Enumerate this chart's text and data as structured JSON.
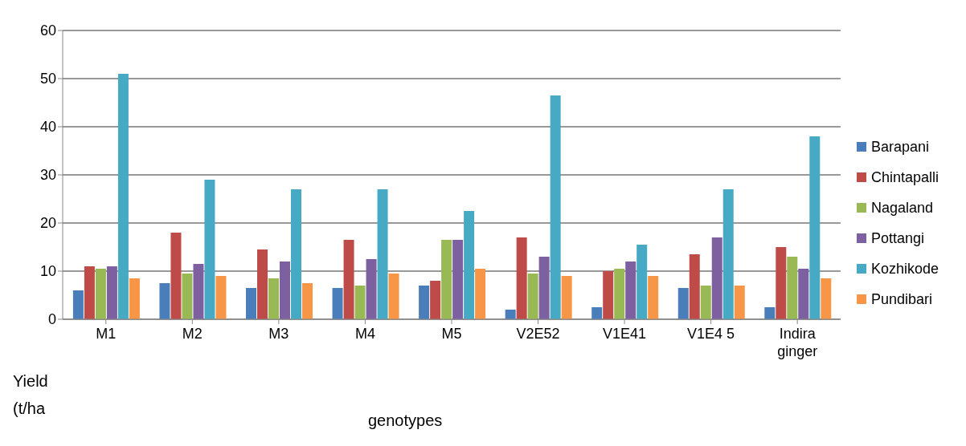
{
  "chart_data": {
    "type": "bar",
    "xlabel": "genotypes",
    "ylabel": "Yield (t/ha",
    "categories": [
      "M1",
      "M2",
      "M3",
      "M4",
      "M5",
      "V2E52",
      "V1E41",
      "V1E4 5",
      "Indira ginger"
    ],
    "series": [
      {
        "name": "Barapani",
        "color": "#4a7ebb",
        "values": [
          6,
          7.5,
          6.5,
          6.5,
          7,
          2,
          2.5,
          6.5,
          2.5
        ]
      },
      {
        "name": "Chintapalli",
        "color": "#be4b48",
        "values": [
          11,
          18,
          14.5,
          16.5,
          8,
          17,
          10,
          13.5,
          15
        ]
      },
      {
        "name": "Nagaland",
        "color": "#98b954",
        "values": [
          10.5,
          9.5,
          8.5,
          7,
          16.5,
          9.5,
          10.5,
          7,
          13
        ]
      },
      {
        "name": "Pottangi",
        "color": "#7d60a0",
        "values": [
          11,
          11.5,
          12,
          12.5,
          16.5,
          13,
          12,
          17,
          10.5
        ]
      },
      {
        "name": "Kozhikode",
        "color": "#46aac5",
        "values": [
          51,
          29,
          27,
          27,
          22.5,
          46.5,
          15.5,
          27,
          38
        ]
      },
      {
        "name": "Pundibari",
        "color": "#f79646",
        "values": [
          8.5,
          9,
          7.5,
          9.5,
          10.5,
          9,
          9,
          7,
          8.5
        ]
      }
    ],
    "ylim": [
      0,
      60
    ],
    "yticks": [
      0,
      10,
      20,
      30,
      40,
      50,
      60
    ],
    "grid": "y",
    "legend": "right"
  }
}
